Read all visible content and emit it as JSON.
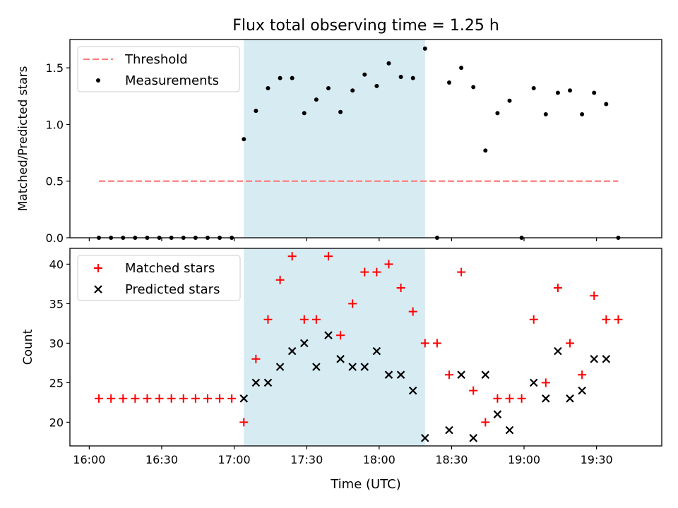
{
  "figure": {
    "title": "Flux total observing time = 1.25 h",
    "xlabel": "Time (UTC)"
  },
  "chart_data": [
    {
      "type": "scatter",
      "panel": "top",
      "ylabel": "Matched/Predicted stars",
      "xlim": [
        "15:52",
        "19:57"
      ],
      "ylim": [
        0,
        1.75
      ],
      "x_ticks": [
        "16:00",
        "16:30",
        "17:00",
        "17:30",
        "18:00",
        "18:30",
        "19:00",
        "19:30"
      ],
      "y_ticks": [
        "0.0",
        "0.5",
        "1.0",
        "1.5"
      ],
      "y_tick_values": [
        0,
        0.5,
        1.0,
        1.5
      ],
      "grid": false,
      "legend_position": "top-left",
      "shaded_span": {
        "x_start": "17:04",
        "x_end": "18:19",
        "color": "#add8e6"
      },
      "series": [
        {
          "name": "Threshold",
          "kind": "line",
          "style": "dashed",
          "color": "#ff7f7f",
          "x": [
            "16:04",
            "19:39"
          ],
          "y": [
            0.5,
            0.5
          ]
        },
        {
          "name": "Measurements",
          "kind": "scatter",
          "marker": "dot",
          "color": "#000000",
          "x": [
            "16:04",
            "16:09",
            "16:14",
            "16:19",
            "16:24",
            "16:29",
            "16:34",
            "16:39",
            "16:44",
            "16:49",
            "16:54",
            "16:59",
            "17:04",
            "17:09",
            "17:14",
            "17:19",
            "17:24",
            "17:29",
            "17:34",
            "17:39",
            "17:44",
            "17:49",
            "17:54",
            "17:59",
            "18:04",
            "18:09",
            "18:14",
            "18:19",
            "18:24",
            "18:29",
            "18:34",
            "18:39",
            "18:44",
            "18:49",
            "18:54",
            "18:59",
            "19:04",
            "19:09",
            "19:14",
            "19:19",
            "19:24",
            "19:29",
            "19:34",
            "19:39"
          ],
          "y": [
            0,
            0,
            0,
            0,
            0,
            0,
            0,
            0,
            0,
            0,
            0,
            0,
            0.87,
            1.12,
            1.32,
            1.41,
            1.41,
            1.1,
            1.22,
            1.32,
            1.11,
            1.3,
            1.44,
            1.34,
            1.54,
            1.42,
            1.41,
            1.67,
            0,
            1.37,
            1.5,
            1.33,
            0.77,
            1.1,
            1.21,
            0,
            1.32,
            1.09,
            1.28,
            1.3,
            1.09,
            1.28,
            1.18,
            0
          ]
        }
      ]
    },
    {
      "type": "scatter",
      "panel": "bottom",
      "ylabel": "Count",
      "xlim": [
        "15:52",
        "19:57"
      ],
      "ylim": [
        17,
        42
      ],
      "x_ticks": [
        "16:00",
        "16:30",
        "17:00",
        "17:30",
        "18:00",
        "18:30",
        "19:00",
        "19:30"
      ],
      "y_ticks": [
        "20",
        "25",
        "30",
        "35",
        "40"
      ],
      "y_tick_values": [
        20,
        25,
        30,
        35,
        40
      ],
      "grid": false,
      "legend_position": "top-left",
      "shaded_span": {
        "x_start": "17:04",
        "x_end": "18:19",
        "color": "#add8e6"
      },
      "series": [
        {
          "name": "Matched stars",
          "kind": "scatter",
          "marker": "plus",
          "color": "#ff0000",
          "x": [
            "16:04",
            "16:09",
            "16:14",
            "16:19",
            "16:24",
            "16:29",
            "16:34",
            "16:39",
            "16:44",
            "16:49",
            "16:54",
            "16:59",
            "17:04",
            "17:09",
            "17:14",
            "17:19",
            "17:24",
            "17:29",
            "17:34",
            "17:39",
            "17:44",
            "17:49",
            "17:54",
            "17:59",
            "18:04",
            "18:09",
            "18:14",
            "18:19",
            "18:24",
            "18:29",
            "18:34",
            "18:39",
            "18:44",
            "18:49",
            "18:54",
            "18:59",
            "19:04",
            "19:09",
            "19:14",
            "19:19",
            "19:24",
            "19:29",
            "19:34",
            "19:39"
          ],
          "y": [
            23,
            23,
            23,
            23,
            23,
            23,
            23,
            23,
            23,
            23,
            23,
            23,
            20,
            28,
            33,
            38,
            41,
            33,
            33,
            41,
            31,
            35,
            39,
            39,
            40,
            37,
            34,
            30,
            30,
            26,
            39,
            24,
            20,
            23,
            23,
            23,
            33,
            25,
            37,
            30,
            26,
            36,
            33,
            33
          ]
        },
        {
          "name": "Predicted stars",
          "kind": "scatter",
          "marker": "x",
          "color": "#000000",
          "x": [
            "17:04",
            "17:09",
            "17:14",
            "17:19",
            "17:24",
            "17:29",
            "17:34",
            "17:39",
            "17:44",
            "17:49",
            "17:54",
            "17:59",
            "18:04",
            "18:09",
            "18:14",
            "18:19",
            "18:29",
            "18:34",
            "18:39",
            "18:44",
            "18:49",
            "18:54",
            "19:04",
            "19:09",
            "19:14",
            "19:19",
            "19:24",
            "19:29",
            "19:34"
          ],
          "y": [
            23,
            25,
            25,
            27,
            29,
            30,
            27,
            31,
            28,
            27,
            27,
            29,
            26,
            26,
            24,
            18,
            19,
            26,
            18,
            26,
            21,
            19,
            25,
            23,
            29,
            23,
            24,
            28,
            28
          ]
        }
      ]
    }
  ]
}
